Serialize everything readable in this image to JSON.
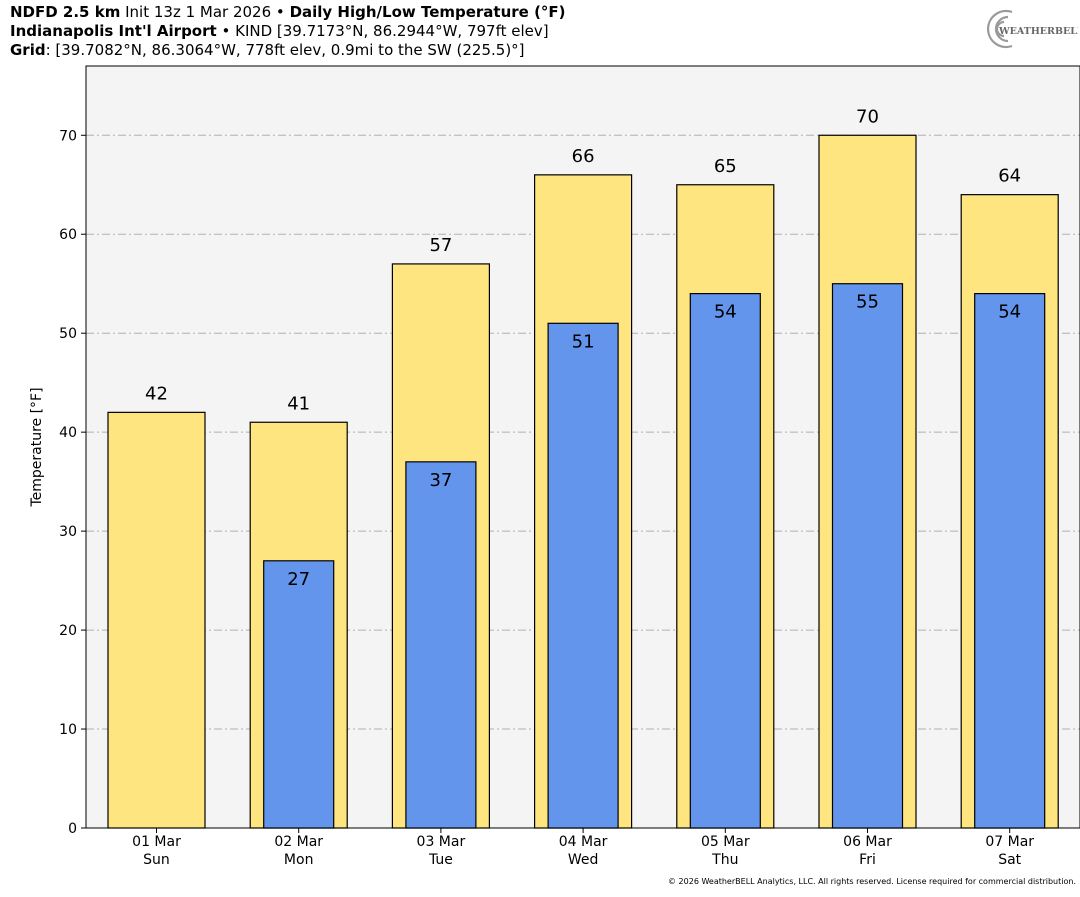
{
  "header": {
    "line1": {
      "model": "NDFD 2.5 km",
      "init": "Init 13z 1 Mar 2026",
      "sep": "•",
      "product": "Daily High/Low Temperature (°F)"
    },
    "line2": {
      "station": "Indianapolis Int'l Airport",
      "sep": "•",
      "details": "KIND [39.7173°N, 86.2944°W, 797ft elev]"
    },
    "line3": {
      "label": "Grid",
      "details": ": [39.7082°N, 86.3064°W, 778ft elev, 0.9mi to the SW (225.5)°]"
    }
  },
  "logo": {
    "text": "WEATHERBELL"
  },
  "copyright": "© 2026 WeatherBELL Analytics, LLC. All rights reserved. License required for commercial distribution.",
  "colors": {
    "high": "#FFE57F",
    "low": "#6495ED",
    "plot_bg": "#F4F4F4",
    "grid": "#B0B0B0"
  },
  "chart_data": {
    "type": "bar",
    "ylabel": "Temperature [°F]",
    "ylim": [
      0,
      77
    ],
    "yticks": [
      0,
      10,
      20,
      30,
      40,
      50,
      60,
      70
    ],
    "grid": true,
    "categories": [
      "01 Mar",
      "02 Mar",
      "03 Mar",
      "04 Mar",
      "05 Mar",
      "06 Mar",
      "07 Mar"
    ],
    "weekdays": [
      "Sun",
      "Mon",
      "Tue",
      "Wed",
      "Thu",
      "Fri",
      "Sat"
    ],
    "series": [
      {
        "values": [
          42,
          41,
          57,
          66,
          65,
          70,
          64
        ]
      },
      {
        "values": [
          null,
          27,
          37,
          51,
          54,
          55,
          54
        ]
      }
    ]
  }
}
